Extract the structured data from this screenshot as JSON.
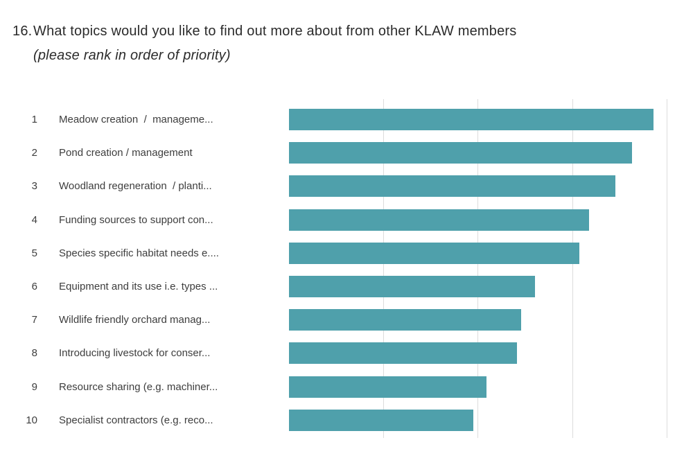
{
  "question": {
    "number": "16.",
    "text": "What topics would you like to find out more about from other KLAW members",
    "subtext": "(please rank in order of priority)"
  },
  "chart_data": {
    "type": "bar",
    "orientation": "horizontal",
    "title": "",
    "xlabel": "",
    "ylabel": "",
    "xlim": [
      0,
      100
    ],
    "grid": "vertical-only",
    "gridlines_pct": [
      25,
      50,
      75,
      100
    ],
    "axis_tick_labels_visible": false,
    "bar_color": "#4fa0ab",
    "gridline_color": "#dcdcdc",
    "ranks": [
      1,
      2,
      3,
      4,
      5,
      6,
      7,
      8,
      9,
      10
    ],
    "categories": [
      "Meadow creation  /  manageme...",
      "Pond creation / management",
      "Woodland regeneration  / planti...",
      "Funding sources to support con...",
      "Species specific habitat needs e....",
      "Equipment and its use i.e. types ...",
      "Wildlife friendly orchard manag...",
      "Introducing livestock for conser...",
      "Resource sharing (e.g. machiner...",
      "Specialist contractors (e.g. reco..."
    ],
    "values_pct": [
      96.3,
      90.7,
      86.3,
      79.3,
      76.7,
      65.0,
      61.4,
      60.3,
      52.2,
      48.7
    ]
  }
}
